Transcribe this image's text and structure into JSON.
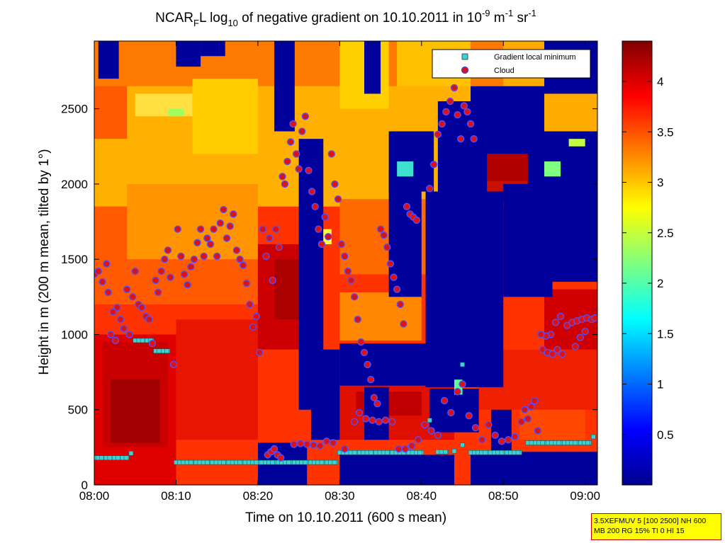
{
  "chart_data": {
    "type": "heatmap",
    "title": {
      "prefix": "NCAR",
      "sub": "F",
      "mid": "L log",
      "sub2": "10",
      "rest": " of negative gradient on 10.10.2011 in 10",
      "sup": "-9",
      "unit1": " m",
      "sup2": "-1",
      "unit2": " sr",
      "sup3": "-1"
    },
    "xlabel": "Time on 10.10.2011 (600 s mean)",
    "ylabel": "Height in m (200 m mean, tilted by 1°)",
    "x_range_minutes": [
      0,
      61.5
    ],
    "y_range_m": [
      0,
      2950
    ],
    "x_ticks": [
      {
        "v": 0,
        "label": "08:00"
      },
      {
        "v": 10,
        "label": "08:10"
      },
      {
        "v": 20,
        "label": "08:20"
      },
      {
        "v": 30,
        "label": "08:30"
      },
      {
        "v": 40,
        "label": "08:40"
      },
      {
        "v": 50,
        "label": "08:50"
      },
      {
        "v": 60,
        "label": "09:00"
      }
    ],
    "y_ticks": [
      {
        "v": 0,
        "label": "0"
      },
      {
        "v": 500,
        "label": "500"
      },
      {
        "v": 1000,
        "label": "1000"
      },
      {
        "v": 1500,
        "label": "1500"
      },
      {
        "v": 2000,
        "label": "2000"
      },
      {
        "v": 2500,
        "label": "2500"
      }
    ],
    "colorbar": {
      "colormap": "jet",
      "range": [
        0,
        4.4
      ],
      "ticks": [
        {
          "v": 0.5,
          "label": "0.5"
        },
        {
          "v": 1,
          "label": "1"
        },
        {
          "v": 1.5,
          "label": "1.5"
        },
        {
          "v": 2,
          "label": "2"
        },
        {
          "v": 2.5,
          "label": "2.5"
        },
        {
          "v": 3,
          "label": "3"
        },
        {
          "v": 3.5,
          "label": "3.5"
        },
        {
          "v": 4,
          "label": "4"
        }
      ]
    },
    "legend": {
      "placement": "top-right",
      "entries": [
        {
          "label": "Gradient local minimum",
          "marker": "square",
          "color": "#40d0d0"
        },
        {
          "label": "Cloud",
          "marker": "circle",
          "color": "#e01010"
        }
      ]
    },
    "gradient_local_minimum": [
      [
        0,
        180
      ],
      [
        1,
        180
      ],
      [
        2,
        180
      ],
      [
        3,
        180
      ],
      [
        4,
        180
      ],
      [
        4.5,
        210
      ],
      [
        5,
        960
      ],
      [
        6,
        960
      ],
      [
        7,
        960
      ],
      [
        7.5,
        890
      ],
      [
        8,
        890
      ],
      [
        9,
        890
      ],
      [
        10,
        150
      ],
      [
        12,
        150
      ],
      [
        14,
        150
      ],
      [
        16,
        150
      ],
      [
        18,
        150
      ],
      [
        20,
        150
      ],
      [
        22,
        150
      ],
      [
        24,
        150
      ],
      [
        26,
        150
      ],
      [
        28,
        150
      ],
      [
        29.5,
        150
      ],
      [
        30,
        215
      ],
      [
        32,
        215
      ],
      [
        34,
        215
      ],
      [
        36,
        215
      ],
      [
        38,
        215
      ],
      [
        40,
        215
      ],
      [
        42,
        220
      ],
      [
        43,
        220
      ],
      [
        44,
        225
      ],
      [
        45,
        265
      ],
      [
        46,
        215
      ],
      [
        48,
        215
      ],
      [
        50,
        215
      ],
      [
        52,
        215
      ],
      [
        53,
        280
      ],
      [
        55,
        280
      ],
      [
        57,
        280
      ],
      [
        59,
        280
      ],
      [
        60.5,
        280
      ],
      [
        61,
        320
      ],
      [
        41,
        430
      ],
      [
        45,
        800
      ]
    ],
    "cloud": [
      [
        0,
        1400
      ],
      [
        0.5,
        1420
      ],
      [
        1,
        1350
      ],
      [
        1.5,
        1470
      ],
      [
        1.7,
        1280
      ],
      [
        2,
        1000
      ],
      [
        2.3,
        1150
      ],
      [
        2.6,
        960
      ],
      [
        2.8,
        1180
      ],
      [
        3.2,
        1100
      ],
      [
        3.6,
        1040
      ],
      [
        4,
        1300
      ],
      [
        4.3,
        1000
      ],
      [
        4.7,
        1250
      ],
      [
        5,
        1420
      ],
      [
        5.4,
        1200
      ],
      [
        5.8,
        1180
      ],
      [
        6.3,
        1120
      ],
      [
        6.7,
        1100
      ],
      [
        7.1,
        940
      ],
      [
        7.5,
        1360
      ],
      [
        7.8,
        1280
      ],
      [
        8.2,
        1420
      ],
      [
        8.6,
        1500
      ],
      [
        9,
        1560
      ],
      [
        9.3,
        1380
      ],
      [
        9.7,
        800
      ],
      [
        10.2,
        1700
      ],
      [
        10.6,
        1520
      ],
      [
        11,
        1400
      ],
      [
        11.4,
        1330
      ],
      [
        11.8,
        1450
      ],
      [
        12.2,
        1500
      ],
      [
        12.6,
        1610
      ],
      [
        13,
        1700
      ],
      [
        13.4,
        1520
      ],
      [
        13.8,
        1640
      ],
      [
        14.2,
        1600
      ],
      [
        14.6,
        1700
      ],
      [
        15,
        1520
      ],
      [
        15.4,
        1740
      ],
      [
        15.8,
        1830
      ],
      [
        16.2,
        1640
      ],
      [
        16.6,
        1720
      ],
      [
        17,
        1800
      ],
      [
        17.4,
        1560
      ],
      [
        17.8,
        1500
      ],
      [
        18.2,
        1460
      ],
      [
        18.6,
        1340
      ],
      [
        19,
        1200
      ],
      [
        19.4,
        1050
      ],
      [
        19.8,
        1120
      ],
      [
        20.2,
        880
      ],
      [
        20.6,
        1700
      ],
      [
        21,
        1520
      ],
      [
        21.4,
        1640
      ],
      [
        21.8,
        1360
      ],
      [
        22.2,
        1700
      ],
      [
        22.6,
        1580
      ],
      [
        23,
        2050
      ],
      [
        23.3,
        2000
      ],
      [
        23.6,
        2150
      ],
      [
        24,
        2280
      ],
      [
        24.3,
        2400
      ],
      [
        24.7,
        2200
      ],
      [
        25,
        2100
      ],
      [
        25.4,
        2350
      ],
      [
        25.8,
        2450
      ],
      [
        26.2,
        2090
      ],
      [
        26.6,
        1950
      ],
      [
        27,
        1850
      ],
      [
        27.4,
        1700
      ],
      [
        27.8,
        1600
      ],
      [
        28.2,
        1780
      ],
      [
        28.6,
        1650
      ],
      [
        29,
        2200
      ],
      [
        29.4,
        2000
      ],
      [
        29.8,
        1900
      ],
      [
        30.2,
        1600
      ],
      [
        30.6,
        1520
      ],
      [
        31,
        1420
      ],
      [
        31.4,
        1360
      ],
      [
        31.8,
        1250
      ],
      [
        32.2,
        1100
      ],
      [
        32.6,
        950
      ],
      [
        33,
        880
      ],
      [
        33.4,
        800
      ],
      [
        33.8,
        700
      ],
      [
        34.2,
        580
      ],
      [
        34.6,
        540
      ],
      [
        35,
        1700
      ],
      [
        35.4,
        1660
      ],
      [
        35.8,
        1580
      ],
      [
        36.2,
        1470
      ],
      [
        36.6,
        1380
      ],
      [
        37,
        1300
      ],
      [
        37.4,
        1200
      ],
      [
        37.8,
        1070
      ],
      [
        38.2,
        1850
      ],
      [
        38.6,
        1800
      ],
      [
        39,
        1780
      ],
      [
        39.4,
        1760
      ],
      [
        41,
        1970
      ],
      [
        41.5,
        2130
      ],
      [
        42,
        2330
      ],
      [
        42.5,
        2400
      ],
      [
        43,
        2480
      ],
      [
        43.5,
        2550
      ],
      [
        44,
        2640
      ],
      [
        44.4,
        2460
      ],
      [
        44.8,
        2300
      ],
      [
        45.2,
        2520
      ],
      [
        45.6,
        2480
      ],
      [
        46,
        2400
      ],
      [
        46.4,
        2300
      ],
      [
        21.2,
        200
      ],
      [
        21.6,
        220
      ],
      [
        22,
        240
      ],
      [
        22.4,
        200
      ],
      [
        22.8,
        180
      ],
      [
        24.4,
        270
      ],
      [
        25.2,
        275
      ],
      [
        26,
        270
      ],
      [
        26.8,
        265
      ],
      [
        27.6,
        260
      ],
      [
        28.4,
        290
      ],
      [
        29.2,
        280
      ],
      [
        30.6,
        240
      ],
      [
        31.8,
        420
      ],
      [
        32.4,
        480
      ],
      [
        33.2,
        440
      ],
      [
        34,
        430
      ],
      [
        34.8,
        420
      ],
      [
        35.6,
        430
      ],
      [
        36.4,
        420
      ],
      [
        37.2,
        240
      ],
      [
        38,
        240
      ],
      [
        38.8,
        260
      ],
      [
        39.6,
        300
      ],
      [
        40.4,
        400
      ],
      [
        41.2,
        360
      ],
      [
        42,
        330
      ],
      [
        42.8,
        560
      ],
      [
        43.6,
        480
      ],
      [
        44.4,
        620
      ],
      [
        45,
        670
      ],
      [
        45.8,
        460
      ],
      [
        46.6,
        380
      ],
      [
        47.4,
        300
      ],
      [
        48.2,
        400
      ],
      [
        49,
        330
      ],
      [
        49.8,
        290
      ],
      [
        50.6,
        300
      ],
      [
        51.4,
        320
      ],
      [
        52.2,
        420
      ],
      [
        52.6,
        500
      ],
      [
        53,
        440
      ],
      [
        53.4,
        520
      ],
      [
        53.8,
        560
      ],
      [
        54.2,
        360
      ],
      [
        54.8,
        900
      ],
      [
        55.4,
        880
      ],
      [
        56,
        870
      ],
      [
        56.6,
        900
      ],
      [
        57.2,
        870
      ],
      [
        57.8,
        1060
      ],
      [
        58.4,
        1080
      ],
      [
        59,
        1090
      ],
      [
        59.6,
        1100
      ],
      [
        60.2,
        1110
      ],
      [
        60.8,
        1100
      ],
      [
        61.2,
        1110
      ],
      [
        56.4,
        1080
      ],
      [
        57,
        1120
      ],
      [
        55.8,
        1000
      ],
      [
        55.2,
        990
      ],
      [
        54.6,
        1000
      ],
      [
        58.8,
        920
      ],
      [
        59.4,
        980
      ],
      [
        60,
        1020
      ]
    ]
  },
  "info_box": {
    "line1": "3.5XEFMUV 5 [100 2500] NH 600",
    "line2": "MB 200 RG 15% TI 0 HI 15"
  }
}
